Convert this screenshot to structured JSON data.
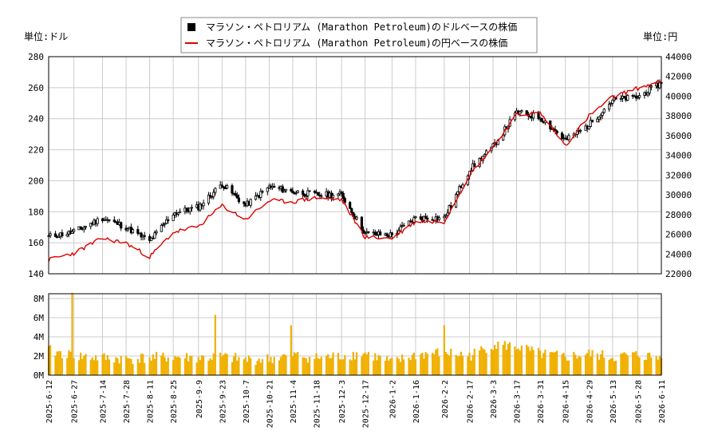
{
  "chart_data": [
    {
      "type": "candlestick+line",
      "legend": {
        "position": "top-center",
        "items": [
          {
            "label": "マラソン・ペトロリアム (Marathon Petroleum)のドルベースの株価",
            "color": "#000000",
            "symbol": "square"
          },
          {
            "label": "マラソン・ペトロリアム (Marathon Petroleum)の円ベースの株価",
            "color": "#dd0000",
            "symbol": "line"
          }
        ]
      },
      "y_left": {
        "label": "単位:ドル",
        "min": 140,
        "max": 280,
        "ticks": [
          140,
          160,
          180,
          200,
          220,
          240,
          260,
          280
        ]
      },
      "y_right": {
        "label": "単位:円",
        "min": 22000,
        "max": 44000,
        "ticks": [
          22000,
          24000,
          26000,
          28000,
          30000,
          32000,
          34000,
          36000,
          38000,
          40000,
          42000,
          44000
        ]
      },
      "grid": true,
      "usd_price_series": {
        "dates": [
          "2025-06-12",
          "2025-06-27",
          "2025-07-14",
          "2025-07-28",
          "2025-08-11",
          "2025-08-25",
          "2025-09-09",
          "2025-09-23",
          "2025-10-07",
          "2025-10-21",
          "2025-11-04",
          "2025-11-18",
          "2025-12-03",
          "2025-12-17",
          "2026-01-02",
          "2026-01-16",
          "2026-02-02",
          "2026-02-17",
          "2026-03-03",
          "2026-03-17",
          "2026-03-31",
          "2026-04-15",
          "2026-04-29",
          "2026-05-13",
          "2026-05-28",
          "2026-06-11"
        ],
        "close": [
          164,
          167,
          176,
          170,
          161,
          179,
          183,
          198,
          184,
          196,
          193,
          191,
          191,
          166,
          165,
          176,
          176,
          207,
          222,
          244,
          241,
          226,
          236,
          252,
          254,
          263
        ]
      },
      "jpy_price_series": {
        "dates": [
          "2025-06-12",
          "2025-06-27",
          "2025-07-14",
          "2025-07-28",
          "2025-08-11",
          "2025-08-25",
          "2025-09-09",
          "2025-09-23",
          "2025-10-07",
          "2025-10-21",
          "2025-11-04",
          "2025-11-18",
          "2025-12-03",
          "2025-12-17",
          "2026-01-02",
          "2026-01-16",
          "2026-02-02",
          "2026-02-17",
          "2026-03-03",
          "2026-03-17",
          "2026-03-31",
          "2026-04-15",
          "2026-04-29",
          "2026-05-13",
          "2026-05-28",
          "2026-06-11"
        ],
        "close": [
          23400,
          24100,
          25600,
          25100,
          23700,
          26200,
          26800,
          28900,
          27500,
          29400,
          29300,
          29700,
          29500,
          25700,
          25600,
          27300,
          27300,
          32000,
          34900,
          38100,
          38300,
          35000,
          38000,
          39900,
          40800,
          41500
        ]
      }
    },
    {
      "type": "bar",
      "y": {
        "min": 0,
        "max": 8500000,
        "ticks": [
          0,
          2000000,
          4000000,
          6000000,
          8000000
        ],
        "tick_labels": [
          "0M",
          "2M",
          "4M",
          "6M",
          "8M"
        ]
      },
      "x_tick_labels": [
        "2025-6-12",
        "2025-6-27",
        "2025-7-14",
        "2025-7-28",
        "2025-8-11",
        "2025-8-25",
        "2025-9-9",
        "2025-9-23",
        "2025-10-7",
        "2025-10-21",
        "2025-11-4",
        "2025-11-18",
        "2025-12-3",
        "2025-12-17",
        "2026-1-2",
        "2026-1-16",
        "2026-2-2",
        "2026-2-17",
        "2026-3-3",
        "2026-3-17",
        "2026-3-31",
        "2026-4-15",
        "2026-4-29",
        "2026-5-13",
        "2026-5-28",
        "2026-6-11"
      ],
      "bar_color": "#f0b000",
      "volume_by_date": {
        "dates": [
          "2025-06-12",
          "2025-06-27",
          "2025-07-14",
          "2025-07-28",
          "2025-08-11",
          "2025-08-25",
          "2025-09-09",
          "2025-09-23",
          "2025-10-07",
          "2025-10-21",
          "2025-11-04",
          "2025-11-18",
          "2025-12-03",
          "2025-12-17",
          "2026-01-02",
          "2026-01-16",
          "2026-02-02",
          "2026-02-17",
          "2026-03-03",
          "2026-03-17",
          "2026-03-31",
          "2026-04-15",
          "2026-04-29",
          "2026-05-13",
          "2026-05-28",
          "2026-06-11"
        ],
        "values": [
          2600000,
          2000000,
          1800000,
          1700000,
          1800000,
          1900000,
          1800000,
          1900000,
          1600000,
          1700000,
          2100000,
          1800000,
          2000000,
          2300000,
          1300000,
          2100000,
          2400000,
          2000000,
          3200000,
          3000000,
          2200000,
          1900000,
          2200000,
          1900000,
          2100000,
          1800000
        ]
      },
      "spikes": [
        {
          "date": "2025-06-26",
          "value": 8600000
        },
        {
          "date": "2025-09-19",
          "value": 6300000
        },
        {
          "date": "2025-11-03",
          "value": 5200000
        },
        {
          "date": "2026-02-02",
          "value": 5200000
        }
      ]
    }
  ],
  "colors": {
    "usd_candle": "#000000",
    "jpy_line": "#dd0000",
    "volume": "#f0b000",
    "grid": "#cccccc"
  }
}
